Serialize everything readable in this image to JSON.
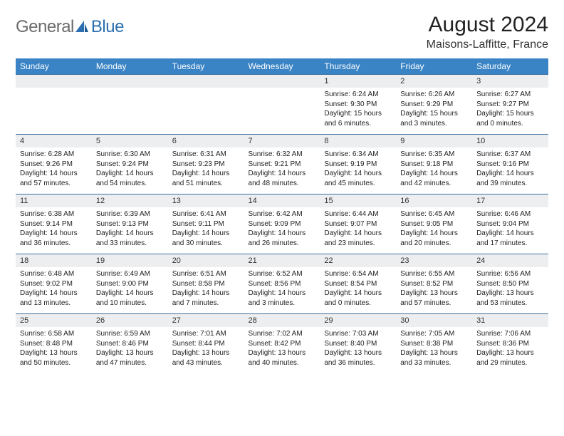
{
  "brand": {
    "general": "General",
    "blue": "Blue"
  },
  "title": "August 2024",
  "location": "Maisons-Laffitte, France",
  "colors": {
    "header_bg": "#3a84c5",
    "header_text": "#ffffff",
    "daynum_bg": "#eceeef",
    "rule": "#3a6fa0",
    "logo_gray": "#6b6b6b",
    "logo_blue": "#2b6fb0"
  },
  "day_names": [
    "Sunday",
    "Monday",
    "Tuesday",
    "Wednesday",
    "Thursday",
    "Friday",
    "Saturday"
  ],
  "weeks": [
    [
      {
        "n": "",
        "sr": "",
        "ss": "",
        "dl": ""
      },
      {
        "n": "",
        "sr": "",
        "ss": "",
        "dl": ""
      },
      {
        "n": "",
        "sr": "",
        "ss": "",
        "dl": ""
      },
      {
        "n": "",
        "sr": "",
        "ss": "",
        "dl": ""
      },
      {
        "n": "1",
        "sr": "Sunrise: 6:24 AM",
        "ss": "Sunset: 9:30 PM",
        "dl": "Daylight: 15 hours and 6 minutes."
      },
      {
        "n": "2",
        "sr": "Sunrise: 6:26 AM",
        "ss": "Sunset: 9:29 PM",
        "dl": "Daylight: 15 hours and 3 minutes."
      },
      {
        "n": "3",
        "sr": "Sunrise: 6:27 AM",
        "ss": "Sunset: 9:27 PM",
        "dl": "Daylight: 15 hours and 0 minutes."
      }
    ],
    [
      {
        "n": "4",
        "sr": "Sunrise: 6:28 AM",
        "ss": "Sunset: 9:26 PM",
        "dl": "Daylight: 14 hours and 57 minutes."
      },
      {
        "n": "5",
        "sr": "Sunrise: 6:30 AM",
        "ss": "Sunset: 9:24 PM",
        "dl": "Daylight: 14 hours and 54 minutes."
      },
      {
        "n": "6",
        "sr": "Sunrise: 6:31 AM",
        "ss": "Sunset: 9:23 PM",
        "dl": "Daylight: 14 hours and 51 minutes."
      },
      {
        "n": "7",
        "sr": "Sunrise: 6:32 AM",
        "ss": "Sunset: 9:21 PM",
        "dl": "Daylight: 14 hours and 48 minutes."
      },
      {
        "n": "8",
        "sr": "Sunrise: 6:34 AM",
        "ss": "Sunset: 9:19 PM",
        "dl": "Daylight: 14 hours and 45 minutes."
      },
      {
        "n": "9",
        "sr": "Sunrise: 6:35 AM",
        "ss": "Sunset: 9:18 PM",
        "dl": "Daylight: 14 hours and 42 minutes."
      },
      {
        "n": "10",
        "sr": "Sunrise: 6:37 AM",
        "ss": "Sunset: 9:16 PM",
        "dl": "Daylight: 14 hours and 39 minutes."
      }
    ],
    [
      {
        "n": "11",
        "sr": "Sunrise: 6:38 AM",
        "ss": "Sunset: 9:14 PM",
        "dl": "Daylight: 14 hours and 36 minutes."
      },
      {
        "n": "12",
        "sr": "Sunrise: 6:39 AM",
        "ss": "Sunset: 9:13 PM",
        "dl": "Daylight: 14 hours and 33 minutes."
      },
      {
        "n": "13",
        "sr": "Sunrise: 6:41 AM",
        "ss": "Sunset: 9:11 PM",
        "dl": "Daylight: 14 hours and 30 minutes."
      },
      {
        "n": "14",
        "sr": "Sunrise: 6:42 AM",
        "ss": "Sunset: 9:09 PM",
        "dl": "Daylight: 14 hours and 26 minutes."
      },
      {
        "n": "15",
        "sr": "Sunrise: 6:44 AM",
        "ss": "Sunset: 9:07 PM",
        "dl": "Daylight: 14 hours and 23 minutes."
      },
      {
        "n": "16",
        "sr": "Sunrise: 6:45 AM",
        "ss": "Sunset: 9:05 PM",
        "dl": "Daylight: 14 hours and 20 minutes."
      },
      {
        "n": "17",
        "sr": "Sunrise: 6:46 AM",
        "ss": "Sunset: 9:04 PM",
        "dl": "Daylight: 14 hours and 17 minutes."
      }
    ],
    [
      {
        "n": "18",
        "sr": "Sunrise: 6:48 AM",
        "ss": "Sunset: 9:02 PM",
        "dl": "Daylight: 14 hours and 13 minutes."
      },
      {
        "n": "19",
        "sr": "Sunrise: 6:49 AM",
        "ss": "Sunset: 9:00 PM",
        "dl": "Daylight: 14 hours and 10 minutes."
      },
      {
        "n": "20",
        "sr": "Sunrise: 6:51 AM",
        "ss": "Sunset: 8:58 PM",
        "dl": "Daylight: 14 hours and 7 minutes."
      },
      {
        "n": "21",
        "sr": "Sunrise: 6:52 AM",
        "ss": "Sunset: 8:56 PM",
        "dl": "Daylight: 14 hours and 3 minutes."
      },
      {
        "n": "22",
        "sr": "Sunrise: 6:54 AM",
        "ss": "Sunset: 8:54 PM",
        "dl": "Daylight: 14 hours and 0 minutes."
      },
      {
        "n": "23",
        "sr": "Sunrise: 6:55 AM",
        "ss": "Sunset: 8:52 PM",
        "dl": "Daylight: 13 hours and 57 minutes."
      },
      {
        "n": "24",
        "sr": "Sunrise: 6:56 AM",
        "ss": "Sunset: 8:50 PM",
        "dl": "Daylight: 13 hours and 53 minutes."
      }
    ],
    [
      {
        "n": "25",
        "sr": "Sunrise: 6:58 AM",
        "ss": "Sunset: 8:48 PM",
        "dl": "Daylight: 13 hours and 50 minutes."
      },
      {
        "n": "26",
        "sr": "Sunrise: 6:59 AM",
        "ss": "Sunset: 8:46 PM",
        "dl": "Daylight: 13 hours and 47 minutes."
      },
      {
        "n": "27",
        "sr": "Sunrise: 7:01 AM",
        "ss": "Sunset: 8:44 PM",
        "dl": "Daylight: 13 hours and 43 minutes."
      },
      {
        "n": "28",
        "sr": "Sunrise: 7:02 AM",
        "ss": "Sunset: 8:42 PM",
        "dl": "Daylight: 13 hours and 40 minutes."
      },
      {
        "n": "29",
        "sr": "Sunrise: 7:03 AM",
        "ss": "Sunset: 8:40 PM",
        "dl": "Daylight: 13 hours and 36 minutes."
      },
      {
        "n": "30",
        "sr": "Sunrise: 7:05 AM",
        "ss": "Sunset: 8:38 PM",
        "dl": "Daylight: 13 hours and 33 minutes."
      },
      {
        "n": "31",
        "sr": "Sunrise: 7:06 AM",
        "ss": "Sunset: 8:36 PM",
        "dl": "Daylight: 13 hours and 29 minutes."
      }
    ]
  ]
}
